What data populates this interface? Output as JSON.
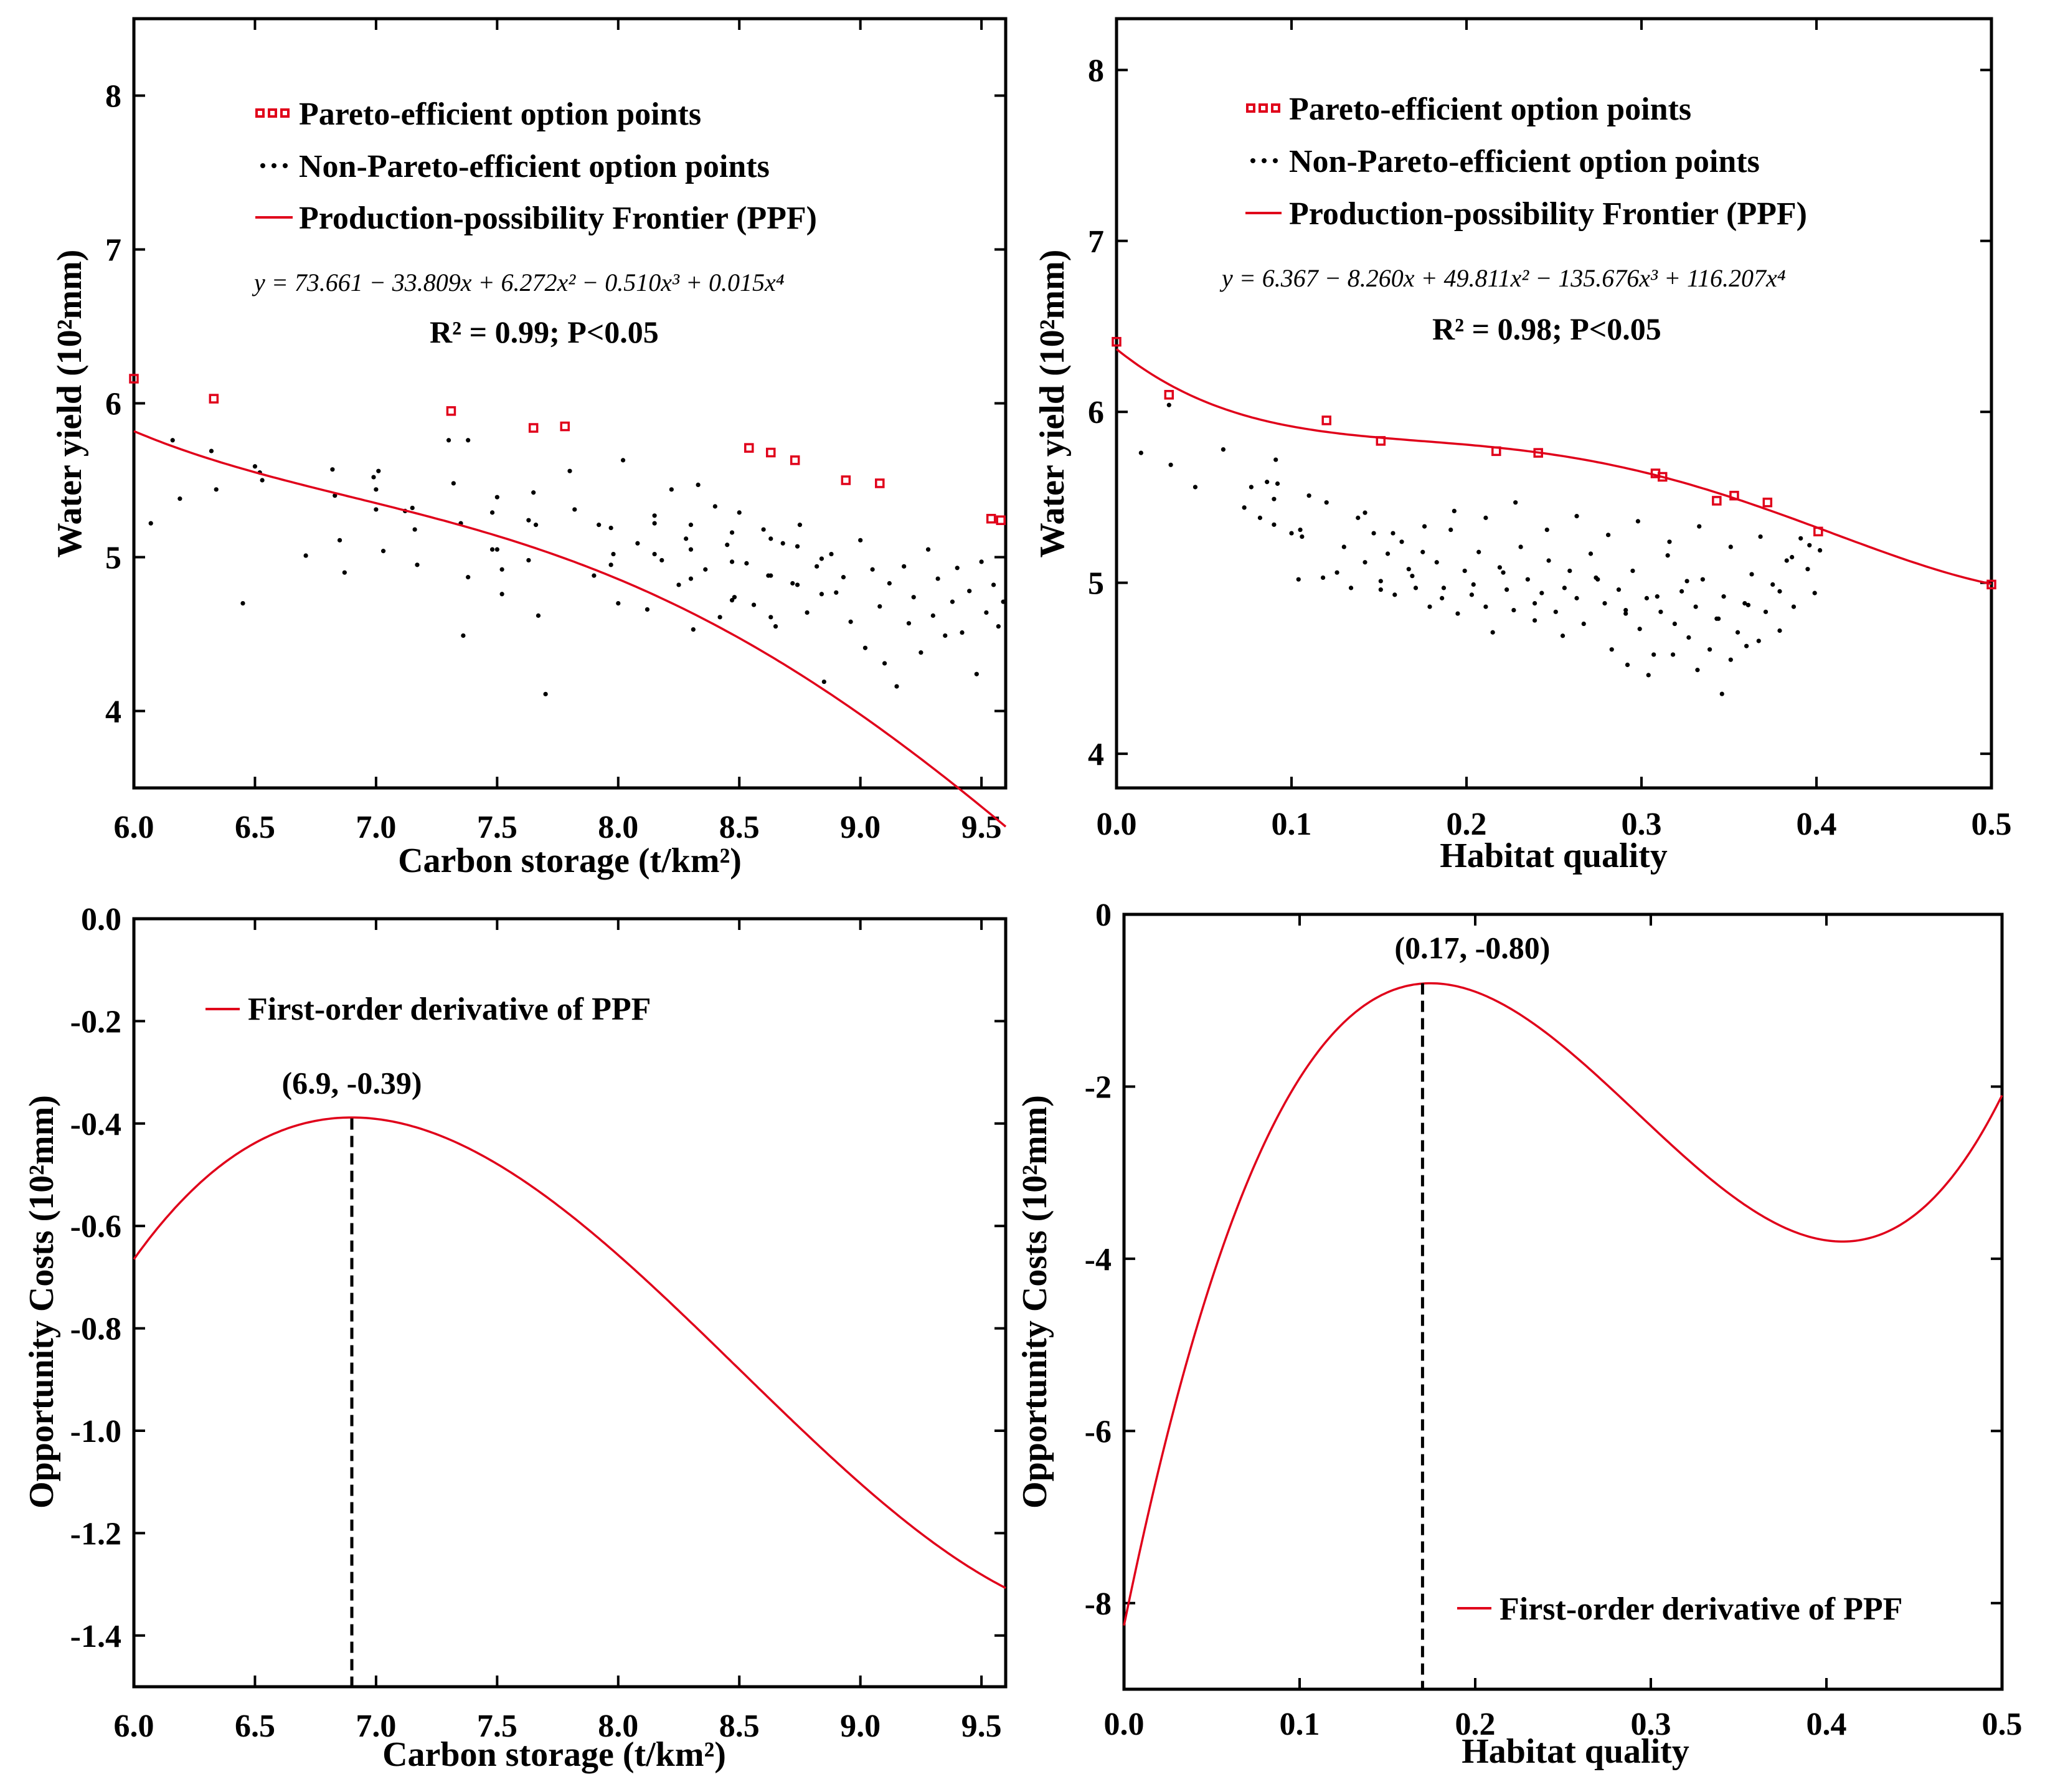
{
  "chart_data": [
    {
      "id": "a",
      "type": "scatter",
      "xlabel": "Carbon storage (t/km²)",
      "ylabel": "Water yield (10²mm)",
      "xlim": [
        6.0,
        9.6
      ],
      "ylim": [
        3.5,
        8.5
      ],
      "xticks": [
        "6.0",
        "6.5",
        "7.0",
        "7.5",
        "8.0",
        "8.5",
        "9.0",
        "9.5"
      ],
      "yticks": [
        "4",
        "5",
        "6",
        "7",
        "8"
      ],
      "legend": [
        "Pareto-efficient option points",
        "Non-Pareto-efficient option points",
        "Production-possibility Frontier (PPF)"
      ],
      "equation": "y = 73.661 − 33.809x + 6.272x² − 0.510x³ + 0.015x⁴",
      "r2_text": "R² = 0.99; P<0.05",
      "ppf_fit": {
        "type": "poly",
        "coefficients": [
          73.661,
          -33.809,
          6.272,
          -0.51,
          0.015
        ],
        "visual_offset": -0.06
      },
      "pareto_points": {
        "x": [
          6.0,
          6.33,
          7.31,
          7.65,
          7.78,
          8.54,
          8.63,
          8.73,
          8.94,
          9.08,
          9.54,
          9.58
        ],
        "y": [
          6.16,
          6.03,
          5.95,
          5.84,
          5.85,
          5.71,
          5.68,
          5.63,
          5.5,
          5.48,
          5.25,
          5.24
        ]
      },
      "non_pareto_points": {
        "x": [
          6.07,
          6.16,
          6.19,
          6.32,
          6.34,
          6.45,
          6.5,
          6.52,
          6.53,
          6.71,
          6.82,
          6.83,
          6.85,
          6.87,
          6.99,
          7.0,
          7.0,
          7.01,
          7.03,
          7.12,
          7.15,
          7.16,
          7.17,
          7.3,
          7.32,
          7.35,
          7.36,
          7.38,
          7.38,
          7.5,
          7.5,
          7.52,
          7.52,
          7.65,
          7.66,
          7.67,
          7.7,
          7.8,
          7.82,
          7.9,
          7.92,
          7.98,
          8.0,
          8.02,
          8.08,
          8.12,
          8.15,
          8.18,
          8.22,
          8.25,
          8.28,
          8.31,
          8.33,
          8.36,
          8.4,
          8.42,
          8.45,
          8.48,
          8.5,
          8.53,
          8.56,
          8.6,
          8.62,
          8.65,
          8.68,
          8.72,
          8.75,
          8.78,
          8.82,
          8.85,
          8.88,
          8.9,
          8.93,
          8.96,
          9.0,
          9.02,
          9.05,
          9.08,
          9.1,
          9.12,
          9.15,
          9.18,
          9.2,
          9.22,
          9.25,
          9.28,
          9.3,
          9.32,
          9.35,
          9.38,
          9.4,
          9.42,
          9.45,
          9.48,
          9.5,
          9.52,
          9.55,
          9.57,
          9.59,
          8.3,
          8.3,
          8.3,
          8.47,
          8.47,
          8.47,
          8.63,
          8.63,
          8.63,
          8.15,
          8.15,
          7.97,
          7.97,
          7.48,
          7.48,
          7.63,
          7.63,
          8.84,
          8.84,
          8.74,
          8.74
        ],
        "y": [
          5.22,
          5.76,
          5.38,
          5.69,
          5.44,
          4.7,
          5.59,
          5.55,
          5.5,
          5.01,
          5.57,
          5.4,
          5.11,
          4.9,
          5.52,
          5.44,
          5.31,
          5.56,
          5.04,
          5.3,
          5.32,
          5.18,
          4.95,
          5.76,
          5.48,
          5.22,
          4.49,
          4.87,
          5.76,
          5.39,
          5.05,
          4.92,
          4.76,
          5.42,
          5.21,
          4.62,
          4.11,
          5.56,
          5.31,
          4.88,
          5.21,
          5.02,
          4.7,
          5.63,
          5.09,
          4.66,
          5.27,
          4.98,
          5.44,
          4.82,
          5.12,
          4.53,
          5.47,
          4.92,
          5.33,
          4.61,
          5.08,
          4.74,
          5.29,
          4.96,
          4.69,
          5.18,
          4.88,
          4.55,
          5.09,
          4.83,
          5.21,
          4.64,
          4.94,
          4.19,
          5.02,
          4.77,
          4.87,
          4.58,
          5.11,
          4.41,
          4.92,
          4.68,
          4.31,
          4.83,
          4.16,
          4.94,
          4.57,
          4.74,
          4.38,
          5.05,
          4.62,
          4.86,
          4.49,
          4.71,
          4.93,
          4.51,
          4.78,
          4.24,
          4.97,
          4.64,
          4.82,
          4.55,
          4.71,
          4.86,
          5.05,
          5.21,
          4.72,
          4.97,
          5.16,
          4.61,
          4.88,
          5.12,
          5.02,
          5.22,
          4.95,
          5.19,
          5.05,
          5.29,
          4.98,
          5.24,
          4.76,
          4.99,
          4.82,
          5.07
        ]
      }
    },
    {
      "id": "b",
      "type": "scatter",
      "xlabel": "Habitat quality",
      "ylabel": "Water yield (10²mm)",
      "xlim": [
        0.0,
        0.5
      ],
      "ylim": [
        3.8,
        8.3
      ],
      "xticks": [
        "0.0",
        "0.1",
        "0.2",
        "0.3",
        "0.4",
        "0.5"
      ],
      "yticks": [
        "4",
        "5",
        "6",
        "7",
        "8"
      ],
      "legend": [
        "Pareto-efficient option points",
        "Non-Pareto-efficient option points",
        "Production-possibility Frontier (PPF)"
      ],
      "equation": "y = 6.367 − 8.260x + 49.811x² − 135.676x³ + 116.207x⁴",
      "r2_text": "R² = 0.98; P<0.05",
      "ppf_fit": {
        "type": "poly",
        "coefficients": [
          6.367,
          -8.26,
          49.811,
          -135.676,
          116.207
        ],
        "visual_offset": 0
      },
      "pareto_points": {
        "x": [
          0.0,
          0.03,
          0.12,
          0.151,
          0.217,
          0.241,
          0.308,
          0.312,
          0.343,
          0.353,
          0.372,
          0.401,
          0.5
        ],
        "y": [
          6.41,
          6.1,
          5.95,
          5.83,
          5.77,
          5.76,
          5.64,
          5.62,
          5.48,
          5.51,
          5.47,
          5.3,
          4.99
        ]
      },
      "non_pareto_points": {
        "x": [
          0.014,
          0.03,
          0.031,
          0.045,
          0.061,
          0.073,
          0.077,
          0.082,
          0.086,
          0.09,
          0.09,
          0.091,
          0.092,
          0.1,
          0.104,
          0.105,
          0.106,
          0.11,
          0.118,
          0.12,
          0.126,
          0.13,
          0.134,
          0.138,
          0.142,
          0.147,
          0.151,
          0.155,
          0.159,
          0.163,
          0.167,
          0.171,
          0.175,
          0.179,
          0.183,
          0.187,
          0.191,
          0.195,
          0.199,
          0.203,
          0.207,
          0.211,
          0.215,
          0.219,
          0.223,
          0.227,
          0.231,
          0.235,
          0.239,
          0.243,
          0.247,
          0.251,
          0.255,
          0.259,
          0.263,
          0.267,
          0.271,
          0.275,
          0.279,
          0.283,
          0.287,
          0.291,
          0.295,
          0.299,
          0.303,
          0.307,
          0.311,
          0.315,
          0.319,
          0.323,
          0.327,
          0.331,
          0.335,
          0.339,
          0.343,
          0.347,
          0.351,
          0.355,
          0.359,
          0.363,
          0.367,
          0.371,
          0.375,
          0.379,
          0.383,
          0.387,
          0.391,
          0.395,
          0.399,
          0.402,
          0.142,
          0.158,
          0.176,
          0.193,
          0.211,
          0.228,
          0.246,
          0.263,
          0.281,
          0.298,
          0.316,
          0.333,
          0.351,
          0.368,
          0.386,
          0.396,
          0.151,
          0.169,
          0.186,
          0.204,
          0.221,
          0.239,
          0.256,
          0.274,
          0.291,
          0.309,
          0.326,
          0.344,
          0.361,
          0.379,
          0.292,
          0.304,
          0.318,
          0.332,
          0.346,
          0.36
        ],
        "y": [
          5.76,
          6.04,
          5.69,
          5.56,
          5.78,
          5.44,
          5.56,
          5.38,
          5.59,
          5.49,
          5.34,
          5.72,
          5.58,
          5.29,
          5.02,
          5.31,
          5.27,
          5.51,
          5.03,
          5.47,
          5.06,
          5.21,
          4.97,
          5.38,
          5.12,
          5.29,
          5.01,
          5.17,
          4.93,
          5.24,
          5.08,
          4.97,
          5.18,
          4.86,
          5.12,
          4.97,
          5.31,
          4.82,
          5.07,
          4.93,
          5.18,
          4.86,
          4.71,
          5.09,
          4.96,
          4.84,
          5.21,
          5.02,
          4.78,
          4.94,
          5.13,
          4.83,
          4.69,
          5.07,
          4.91,
          4.76,
          5.17,
          5.02,
          4.88,
          4.61,
          4.96,
          4.82,
          5.07,
          4.73,
          4.91,
          4.58,
          4.83,
          5.16,
          4.76,
          4.95,
          4.68,
          4.86,
          5.02,
          4.61,
          4.79,
          4.92,
          4.55,
          4.71,
          4.88,
          5.05,
          4.66,
          4.83,
          4.99,
          4.72,
          5.13,
          4.86,
          5.26,
          5.08,
          4.94,
          5.19,
          5.41,
          5.29,
          5.33,
          5.42,
          5.38,
          5.47,
          5.31,
          5.39,
          5.28,
          5.36,
          5.24,
          5.33,
          5.21,
          5.27,
          5.15,
          5.22,
          4.96,
          5.04,
          4.91,
          4.99,
          5.06,
          4.88,
          4.97,
          5.03,
          4.84,
          4.92,
          5.01,
          4.79,
          4.87,
          4.95,
          4.52,
          4.46,
          4.58,
          4.49,
          4.35,
          4.63
        ]
      }
    },
    {
      "id": "c",
      "type": "line",
      "xlabel": "Carbon storage (t/km²)",
      "ylabel": "Opportunity Costs (10²mm)",
      "xlim": [
        6.0,
        9.6
      ],
      "ylim": [
        -1.5,
        0.0
      ],
      "xticks": [
        "6.0",
        "6.5",
        "7.0",
        "7.5",
        "8.0",
        "8.5",
        "9.0",
        "9.5"
      ],
      "yticks": [
        "0.0",
        "-0.2",
        "-0.4",
        "-0.6",
        "-0.8",
        "-1.0",
        "-1.2",
        "-1.4"
      ],
      "legend": [
        "First-order derivative of  PPF"
      ],
      "series_fit": {
        "type": "poly",
        "coefficients": [
          -33.809,
          12.544,
          -1.53,
          0.06
        ]
      },
      "peak": {
        "x": 6.9,
        "y": -0.39,
        "label": "(6.9, -0.39)"
      }
    },
    {
      "id": "d",
      "type": "line",
      "xlabel": "Habitat quality",
      "ylabel": "Opportunity Costs (10²mm)",
      "xlim": [
        0.0,
        0.5
      ],
      "ylim": [
        -9.0,
        0.0
      ],
      "xticks": [
        "0.0",
        "0.1",
        "0.2",
        "0.3",
        "0.4",
        "0.5"
      ],
      "yticks": [
        "0",
        "-2",
        "-4",
        "-6",
        "-8"
      ],
      "legend": [
        "First-order derivative of  PPF"
      ],
      "series_fit": {
        "type": "poly",
        "coefficients": [
          -8.26,
          99.622,
          -407.028,
          464.828
        ]
      },
      "peak": {
        "x": 0.17,
        "y": -0.8,
        "label": "(0.17, -0.80)"
      }
    }
  ],
  "colors": {
    "frontier": "#e0001a",
    "points": "#000000",
    "axis": "#000000"
  }
}
